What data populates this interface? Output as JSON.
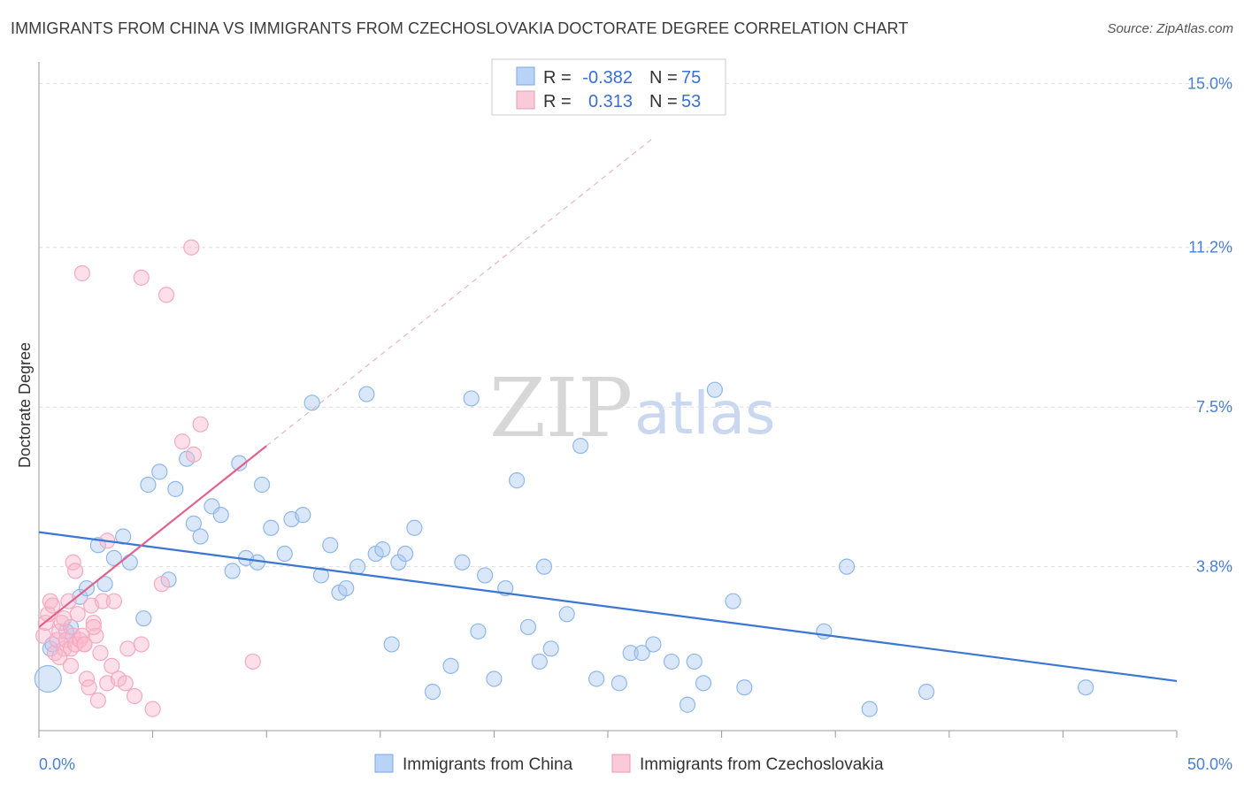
{
  "title": "IMMIGRANTS FROM CHINA VS IMMIGRANTS FROM CZECHOSLOVAKIA DOCTORATE DEGREE CORRELATION CHART",
  "source": "Source: ZipAtlas.com",
  "watermark": {
    "zip": "ZIP",
    "atlas": "atlas"
  },
  "legend": {
    "rows": [
      {
        "r_label": "R =",
        "r_value": "-0.382",
        "n_label": "N =",
        "n_value": "75"
      },
      {
        "r_label": "R =",
        "r_value": "0.313",
        "n_label": "N =",
        "n_value": "53"
      }
    ]
  },
  "chart_data": {
    "type": "scatter",
    "title": "IMMIGRANTS FROM CHINA VS IMMIGRANTS FROM CZECHOSLOVAKIA DOCTORATE DEGREE CORRELATION CHART",
    "xlabel": "",
    "ylabel": "Doctorate Degree",
    "xlim": [
      0,
      50
    ],
    "ylim": [
      0,
      15.5
    ],
    "x_tick_labels": [
      "0.0%",
      "50.0%"
    ],
    "y_ticks": [
      3.8,
      7.5,
      11.2,
      15.0
    ],
    "y_tick_labels": [
      "3.8%",
      "7.5%",
      "11.2%",
      "15.0%"
    ],
    "series": [
      {
        "name": "Immigrants from China",
        "color": "#8fb8ea",
        "line_color": "#3a76d4",
        "trend": {
          "x0": 0,
          "y0": 4.6,
          "x1": 50,
          "y1": 1.15
        },
        "points": [
          [
            0.4,
            1.2
          ],
          [
            0.5,
            1.9
          ],
          [
            0.6,
            2.0
          ],
          [
            1.2,
            2.3
          ],
          [
            1.4,
            2.4
          ],
          [
            1.8,
            3.1
          ],
          [
            2.1,
            3.3
          ],
          [
            2.6,
            4.3
          ],
          [
            2.9,
            3.4
          ],
          [
            3.3,
            4.0
          ],
          [
            3.7,
            4.5
          ],
          [
            4.0,
            3.9
          ],
          [
            4.6,
            2.6
          ],
          [
            4.8,
            5.7
          ],
          [
            5.3,
            6.0
          ],
          [
            5.7,
            3.5
          ],
          [
            6.0,
            5.6
          ],
          [
            6.5,
            6.3
          ],
          [
            6.8,
            4.8
          ],
          [
            7.1,
            4.5
          ],
          [
            7.6,
            5.2
          ],
          [
            8.0,
            5.0
          ],
          [
            8.5,
            3.7
          ],
          [
            8.8,
            6.2
          ],
          [
            9.1,
            4.0
          ],
          [
            9.6,
            3.9
          ],
          [
            9.8,
            5.7
          ],
          [
            10.2,
            4.7
          ],
          [
            10.8,
            4.1
          ],
          [
            11.1,
            4.9
          ],
          [
            11.6,
            5.0
          ],
          [
            12.0,
            7.6
          ],
          [
            12.4,
            3.6
          ],
          [
            12.8,
            4.3
          ],
          [
            13.2,
            3.2
          ],
          [
            13.5,
            3.3
          ],
          [
            14.0,
            3.8
          ],
          [
            14.4,
            7.8
          ],
          [
            14.8,
            4.1
          ],
          [
            15.1,
            4.2
          ],
          [
            15.5,
            2.0
          ],
          [
            15.8,
            3.9
          ],
          [
            16.1,
            4.1
          ],
          [
            16.5,
            4.7
          ],
          [
            17.3,
            0.9
          ],
          [
            18.1,
            1.5
          ],
          [
            18.6,
            3.9
          ],
          [
            19.0,
            7.7
          ],
          [
            19.3,
            2.3
          ],
          [
            19.6,
            3.6
          ],
          [
            20.0,
            1.2
          ],
          [
            20.5,
            3.3
          ],
          [
            21.0,
            5.8
          ],
          [
            21.5,
            2.4
          ],
          [
            22.0,
            1.6
          ],
          [
            22.2,
            3.8
          ],
          [
            22.5,
            1.9
          ],
          [
            23.2,
            2.7
          ],
          [
            23.8,
            6.6
          ],
          [
            24.5,
            1.2
          ],
          [
            25.5,
            1.1
          ],
          [
            26.0,
            1.8
          ],
          [
            26.5,
            1.8
          ],
          [
            27.0,
            2.0
          ],
          [
            27.8,
            1.6
          ],
          [
            28.5,
            0.6
          ],
          [
            28.8,
            1.6
          ],
          [
            29.2,
            1.1
          ],
          [
            29.7,
            7.9
          ],
          [
            30.5,
            3.0
          ],
          [
            31.0,
            1.0
          ],
          [
            34.5,
            2.3
          ],
          [
            35.5,
            3.8
          ],
          [
            36.5,
            0.5
          ],
          [
            39.0,
            0.9
          ],
          [
            46.0,
            1.0
          ]
        ]
      },
      {
        "name": "Immigrants from Czechoslovakia",
        "color": "#f5a9c1",
        "line_color": "#e0628c",
        "trend": {
          "x0": 0,
          "y0": 2.4,
          "x1": 10,
          "y1": 6.6
        },
        "points": [
          [
            0.2,
            2.2
          ],
          [
            0.3,
            2.5
          ],
          [
            0.4,
            2.7
          ],
          [
            0.5,
            3.0
          ],
          [
            0.6,
            2.9
          ],
          [
            0.7,
            1.8
          ],
          [
            0.8,
            2.1
          ],
          [
            0.9,
            2.3
          ],
          [
            1.0,
            2.5
          ],
          [
            1.1,
            1.9
          ],
          [
            1.2,
            2.1
          ],
          [
            1.3,
            3.0
          ],
          [
            1.4,
            1.9
          ],
          [
            1.5,
            2.2
          ],
          [
            1.6,
            2.0
          ],
          [
            1.7,
            2.7
          ],
          [
            1.8,
            2.1
          ],
          [
            1.9,
            2.2
          ],
          [
            2.0,
            2.0
          ],
          [
            2.1,
            1.2
          ],
          [
            2.2,
            1.0
          ],
          [
            2.3,
            2.9
          ],
          [
            2.4,
            2.5
          ],
          [
            2.5,
            2.2
          ],
          [
            2.7,
            1.8
          ],
          [
            2.8,
            3.0
          ],
          [
            3.0,
            1.1
          ],
          [
            3.2,
            1.5
          ],
          [
            3.5,
            1.2
          ],
          [
            3.8,
            1.1
          ],
          [
            4.2,
            0.8
          ],
          [
            1.5,
            3.9
          ],
          [
            1.6,
            3.7
          ],
          [
            3.0,
            4.4
          ],
          [
            3.3,
            3.0
          ],
          [
            2.0,
            2.0
          ],
          [
            2.6,
            0.7
          ],
          [
            4.5,
            2.0
          ],
          [
            5.0,
            0.5
          ],
          [
            6.3,
            6.7
          ],
          [
            6.8,
            6.4
          ],
          [
            7.1,
            7.1
          ],
          [
            1.9,
            10.6
          ],
          [
            4.5,
            10.5
          ],
          [
            5.6,
            10.1
          ],
          [
            6.7,
            11.2
          ],
          [
            9.4,
            1.6
          ],
          [
            5.4,
            3.4
          ],
          [
            1.1,
            2.6
          ],
          [
            0.9,
            1.7
          ],
          [
            1.4,
            1.5
          ],
          [
            2.4,
            2.4
          ],
          [
            3.9,
            1.9
          ]
        ]
      }
    ]
  },
  "bottom_legend": {
    "items": [
      {
        "label": "Immigrants from China",
        "color": "#b8d3f5",
        "border": "#7aa7e6"
      },
      {
        "label": "Immigrants from Czechoslovakia",
        "color": "#fbcad8",
        "border": "#ee9ab5"
      }
    ]
  },
  "colors": {
    "blue": "#3a76d4",
    "pink": "#e0628c",
    "grid": "#dddddd",
    "axis_text": "#4a7fd1"
  }
}
